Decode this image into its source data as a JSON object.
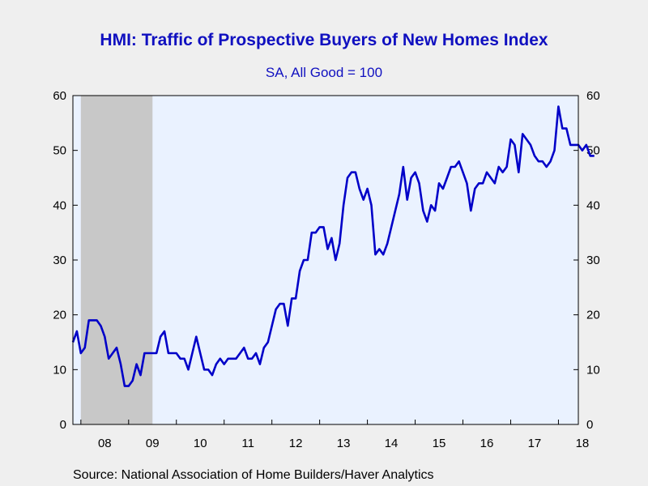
{
  "chart_data": {
    "type": "line",
    "title": "HMI: Traffic of Prospective Buyers of New Homes Index",
    "subtitle": "SA, All Good = 100",
    "source": "Source:  National Association of Home Builders/Haver Analytics",
    "ylim": [
      0,
      60
    ],
    "yticks": [
      0,
      10,
      20,
      30,
      40,
      50,
      60
    ],
    "x_range": [
      "2007-11",
      "2018-06"
    ],
    "xtick_labels": [
      {
        "label": "08",
        "year": 2008
      },
      {
        "label": "09",
        "year": 2009
      },
      {
        "label": "10",
        "year": 2010
      },
      {
        "label": "11",
        "year": 2011
      },
      {
        "label": "12",
        "year": 2012
      },
      {
        "label": "13",
        "year": 2013
      },
      {
        "label": "14",
        "year": 2014
      },
      {
        "label": "15",
        "year": 2015
      },
      {
        "label": "16",
        "year": 2016
      },
      {
        "label": "17",
        "year": 2017
      },
      {
        "label": "18",
        "year": 2018
      }
    ],
    "recession": {
      "start": "2008-01",
      "end": "2009-06"
    },
    "grid": false,
    "colors": {
      "line": "#0000c8",
      "plot_bg": "#eaf2ff",
      "recession": "#c8c8c8",
      "title": "#1010c0"
    },
    "series": [
      {
        "values": [
          [
            "2007-11",
            15
          ],
          [
            "2007-12",
            17
          ],
          [
            "2008-01",
            13
          ],
          [
            "2008-02",
            14
          ],
          [
            "2008-03",
            19
          ],
          [
            "2008-04",
            19
          ],
          [
            "2008-05",
            19
          ],
          [
            "2008-06",
            18
          ],
          [
            "2008-07",
            16
          ],
          [
            "2008-08",
            12
          ],
          [
            "2008-09",
            13
          ],
          [
            "2008-10",
            14
          ],
          [
            "2008-11",
            11
          ],
          [
            "2008-12",
            7
          ],
          [
            "2009-01",
            7
          ],
          [
            "2009-02",
            8
          ],
          [
            "2009-03",
            11
          ],
          [
            "2009-04",
            9
          ],
          [
            "2009-05",
            13
          ],
          [
            "2009-06",
            13
          ],
          [
            "2009-07",
            13
          ],
          [
            "2009-08",
            13
          ],
          [
            "2009-09",
            16
          ],
          [
            "2009-10",
            17
          ],
          [
            "2009-11",
            13
          ],
          [
            "2009-12",
            13
          ],
          [
            "2010-01",
            13
          ],
          [
            "2010-02",
            12
          ],
          [
            "2010-03",
            12
          ],
          [
            "2010-04",
            10
          ],
          [
            "2010-05",
            13
          ],
          [
            "2010-06",
            16
          ],
          [
            "2010-07",
            13
          ],
          [
            "2010-08",
            10
          ],
          [
            "2010-09",
            10
          ],
          [
            "2010-10",
            9
          ],
          [
            "2010-11",
            11
          ],
          [
            "2010-12",
            12
          ],
          [
            "2011-01",
            11
          ],
          [
            "2011-02",
            12
          ],
          [
            "2011-03",
            12
          ],
          [
            "2011-04",
            12
          ],
          [
            "2011-05",
            13
          ],
          [
            "2011-06",
            14
          ],
          [
            "2011-07",
            12
          ],
          [
            "2011-08",
            12
          ],
          [
            "2011-09",
            13
          ],
          [
            "2011-10",
            11
          ],
          [
            "2011-11",
            14
          ],
          [
            "2011-12",
            15
          ],
          [
            "2012-01",
            18
          ],
          [
            "2012-02",
            21
          ],
          [
            "2012-03",
            22
          ],
          [
            "2012-04",
            22
          ],
          [
            "2012-05",
            18
          ],
          [
            "2012-06",
            23
          ],
          [
            "2012-07",
            23
          ],
          [
            "2012-08",
            28
          ],
          [
            "2012-09",
            30
          ],
          [
            "2012-10",
            30
          ],
          [
            "2012-11",
            35
          ],
          [
            "2012-12",
            35
          ],
          [
            "2013-01",
            36
          ],
          [
            "2013-02",
            36
          ],
          [
            "2013-03",
            32
          ],
          [
            "2013-04",
            34
          ],
          [
            "2013-05",
            30
          ],
          [
            "2013-06",
            33
          ],
          [
            "2013-07",
            40
          ],
          [
            "2013-08",
            45
          ],
          [
            "2013-09",
            46
          ],
          [
            "2013-10",
            46
          ],
          [
            "2013-11",
            43
          ],
          [
            "2013-12",
            41
          ],
          [
            "2014-01",
            43
          ],
          [
            "2014-02",
            40
          ],
          [
            "2014-03",
            31
          ],
          [
            "2014-04",
            32
          ],
          [
            "2014-05",
            31
          ],
          [
            "2014-06",
            33
          ],
          [
            "2014-07",
            36
          ],
          [
            "2014-08",
            39
          ],
          [
            "2014-09",
            42
          ],
          [
            "2014-10",
            47
          ],
          [
            "2014-11",
            41
          ],
          [
            "2014-12",
            45
          ],
          [
            "2015-01",
            46
          ],
          [
            "2015-02",
            44
          ],
          [
            "2015-03",
            39
          ],
          [
            "2015-04",
            37
          ],
          [
            "2015-05",
            40
          ],
          [
            "2015-06",
            39
          ],
          [
            "2015-07",
            44
          ],
          [
            "2015-08",
            43
          ],
          [
            "2015-09",
            45
          ],
          [
            "2015-10",
            47
          ],
          [
            "2015-11",
            47
          ],
          [
            "2015-12",
            48
          ],
          [
            "2016-01",
            46
          ],
          [
            "2016-02",
            44
          ],
          [
            "2016-03",
            39
          ],
          [
            "2016-04",
            43
          ],
          [
            "2016-05",
            44
          ],
          [
            "2016-06",
            44
          ],
          [
            "2016-07",
            46
          ],
          [
            "2016-08",
            45
          ],
          [
            "2016-09",
            44
          ],
          [
            "2016-10",
            47
          ],
          [
            "2016-11",
            46
          ],
          [
            "2016-12",
            47
          ],
          [
            "2017-01",
            52
          ],
          [
            "2017-02",
            51
          ],
          [
            "2017-03",
            46
          ],
          [
            "2017-04",
            53
          ],
          [
            "2017-05",
            52
          ],
          [
            "2017-06",
            51
          ],
          [
            "2017-07",
            49
          ],
          [
            "2017-08",
            48
          ],
          [
            "2017-09",
            48
          ],
          [
            "2017-10",
            47
          ],
          [
            "2017-11",
            48
          ],
          [
            "2017-12",
            50
          ],
          [
            "2018-01",
            58
          ],
          [
            "2018-02",
            54
          ],
          [
            "2018-03",
            54
          ],
          [
            "2018-04",
            51
          ],
          [
            "2018-05",
            51
          ],
          [
            "2018-06",
            51
          ],
          [
            "2018-07",
            50
          ],
          [
            "2018-08",
            51
          ],
          [
            "2018-09",
            49
          ],
          [
            "2018-10",
            49
          ]
        ]
      }
    ]
  }
}
